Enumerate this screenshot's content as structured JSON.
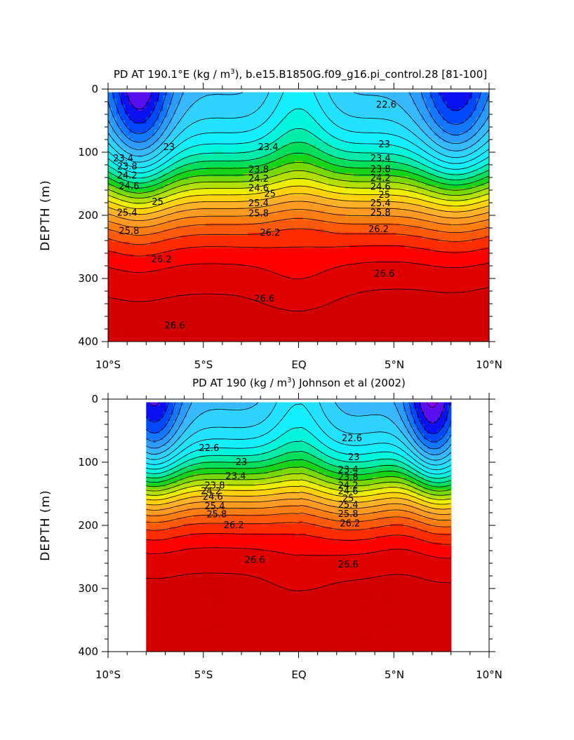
{
  "chart_data": [
    {
      "type": "heatmap",
      "subtype": "filled-contour depth section",
      "title_prefix": "PD AT 190.1°E (kg / m",
      "title_sup": "3",
      "title_suffix": "), b.e15.B1850G.f09_g16.pi_control.28 [81-100]",
      "title": "PD AT 190.1°E (kg / m³), b.e15.B1850G.f09_g16.pi_control.28 [81-100]",
      "ylabel": "DEPTH (m)",
      "xlabel": "",
      "x_range": [
        -10,
        10
      ],
      "y_range": [
        0,
        400
      ],
      "y_reversed": true,
      "x_ticks": [
        {
          "value": -10,
          "label": "10°S"
        },
        {
          "value": -5,
          "label": "5°S"
        },
        {
          "value": 0,
          "label": "EQ"
        },
        {
          "value": 5,
          "label": "5°N"
        },
        {
          "value": 10,
          "label": "10°N"
        }
      ],
      "y_ticks": [
        {
          "value": 0,
          "label": "0"
        },
        {
          "value": 100,
          "label": "100"
        },
        {
          "value": 200,
          "label": "200"
        },
        {
          "value": 300,
          "label": "300"
        },
        {
          "value": 400,
          "label": "400"
        }
      ],
      "data_extent": [
        -10,
        10
      ],
      "contour_levels": [
        21.4,
        21.6,
        21.8,
        22.0,
        22.2,
        22.4,
        22.6,
        22.8,
        23.0,
        23.2,
        23.4,
        23.6,
        23.8,
        24.0,
        24.2,
        24.4,
        24.6,
        24.8,
        25.0,
        25.2,
        25.4,
        25.6,
        25.8,
        26.0,
        26.2,
        26.4,
        26.6
      ],
      "contour_labels": [
        {
          "text": "22.6",
          "x": 4.6,
          "y": 25
        },
        {
          "text": "23",
          "x": -6.8,
          "y": 92
        },
        {
          "text": "23",
          "x": 4.5,
          "y": 88
        },
        {
          "text": "23.4",
          "x": -1.6,
          "y": 92
        },
        {
          "text": "23.4",
          "x": -9.2,
          "y": 110
        },
        {
          "text": "23.4",
          "x": 4.3,
          "y": 110
        },
        {
          "text": "23.8",
          "x": -9.0,
          "y": 123
        },
        {
          "text": "23.8",
          "x": -2.1,
          "y": 128
        },
        {
          "text": "23.8",
          "x": 4.3,
          "y": 127
        },
        {
          "text": "24.2",
          "x": -9.0,
          "y": 137
        },
        {
          "text": "24.2",
          "x": -2.1,
          "y": 142
        },
        {
          "text": "24.2",
          "x": 4.3,
          "y": 141
        },
        {
          "text": "24.6",
          "x": -8.9,
          "y": 154
        },
        {
          "text": "24.6",
          "x": -2.1,
          "y": 157
        },
        {
          "text": "24.6",
          "x": 4.3,
          "y": 155
        },
        {
          "text": "25",
          "x": -7.4,
          "y": 179
        },
        {
          "text": "25",
          "x": -1.5,
          "y": 166
        },
        {
          "text": "25",
          "x": 4.5,
          "y": 168
        },
        {
          "text": "25.4",
          "x": -9.0,
          "y": 196
        },
        {
          "text": "25.4",
          "x": -2.1,
          "y": 181
        },
        {
          "text": "25.4",
          "x": 4.3,
          "y": 181
        },
        {
          "text": "25.8",
          "x": -8.9,
          "y": 225
        },
        {
          "text": "25.8",
          "x": -2.1,
          "y": 197
        },
        {
          "text": "25.8",
          "x": 4.3,
          "y": 196
        },
        {
          "text": "26.2",
          "x": -1.5,
          "y": 228
        },
        {
          "text": "26.2",
          "x": 4.2,
          "y": 222
        },
        {
          "text": "26.2",
          "x": -7.2,
          "y": 270
        },
        {
          "text": "26.6",
          "x": 4.5,
          "y": 293
        },
        {
          "text": "26.6",
          "x": -1.8,
          "y": 332
        },
        {
          "text": "26.6",
          "x": -6.5,
          "y": 375
        }
      ]
    },
    {
      "type": "heatmap",
      "subtype": "filled-contour depth section",
      "title_prefix": "PD AT 190 (kg / m",
      "title_sup": "3",
      "title_suffix": ") Johnson et al (2002)",
      "title": "PD AT 190 (kg / m³) Johnson et al (2002)",
      "ylabel": "DEPTH (m)",
      "xlabel": "",
      "x_range": [
        -10,
        10
      ],
      "y_range": [
        0,
        400
      ],
      "y_reversed": true,
      "x_ticks": [
        {
          "value": -10,
          "label": "10°S"
        },
        {
          "value": -5,
          "label": "5°S"
        },
        {
          "value": 0,
          "label": "EQ"
        },
        {
          "value": 5,
          "label": "5°N"
        },
        {
          "value": 10,
          "label": "10°N"
        }
      ],
      "y_ticks": [
        {
          "value": 0,
          "label": "0"
        },
        {
          "value": 100,
          "label": "100"
        },
        {
          "value": 200,
          "label": "200"
        },
        {
          "value": 300,
          "label": "300"
        },
        {
          "value": 400,
          "label": "400"
        }
      ],
      "data_extent": [
        -8,
        8
      ],
      "contour_levels": [
        21.4,
        21.6,
        21.8,
        22.0,
        22.2,
        22.4,
        22.6,
        22.8,
        23.0,
        23.2,
        23.4,
        23.6,
        23.8,
        24.0,
        24.2,
        24.4,
        24.6,
        24.8,
        25.0,
        25.2,
        25.4,
        25.6,
        25.8,
        26.0,
        26.2,
        26.4,
        26.6
      ],
      "contour_labels": [
        {
          "text": "22.6",
          "x": 2.8,
          "y": 62
        },
        {
          "text": "22.6",
          "x": -4.7,
          "y": 78
        },
        {
          "text": "23",
          "x": -3.0,
          "y": 100
        },
        {
          "text": "23",
          "x": 2.9,
          "y": 92
        },
        {
          "text": "23.4",
          "x": -3.3,
          "y": 122
        },
        {
          "text": "23.4",
          "x": 2.6,
          "y": 112
        },
        {
          "text": "23.8",
          "x": -4.4,
          "y": 137
        },
        {
          "text": "23.8",
          "x": 2.6,
          "y": 124
        },
        {
          "text": "24.2",
          "x": -4.6,
          "y": 146
        },
        {
          "text": "24.2",
          "x": 2.6,
          "y": 137
        },
        {
          "text": "24.6",
          "x": -4.5,
          "y": 155
        },
        {
          "text": "24.6",
          "x": 2.6,
          "y": 146
        },
        {
          "text": "25",
          "x": 2.6,
          "y": 158
        },
        {
          "text": "25.4",
          "x": -4.4,
          "y": 170
        },
        {
          "text": "25.4",
          "x": 2.6,
          "y": 168
        },
        {
          "text": "25.8",
          "x": -4.3,
          "y": 183
        },
        {
          "text": "25.8",
          "x": 2.6,
          "y": 182
        },
        {
          "text": "26.2",
          "x": -3.4,
          "y": 200
        },
        {
          "text": "26.2",
          "x": 2.7,
          "y": 197
        },
        {
          "text": "26.6",
          "x": -2.3,
          "y": 255
        },
        {
          "text": "26.6",
          "x": 2.6,
          "y": 262
        }
      ]
    }
  ],
  "colors": {
    "band_colors": [
      "#cc00dd",
      "#8800e8",
      "#5a10ee",
      "#0a10f2",
      "#0049ff",
      "#1478ff",
      "#2c9cfa",
      "#38b8ff",
      "#2ed2fc",
      "#22e2ff",
      "#14efff",
      "#00f6dd",
      "#00eca8",
      "#00de5c",
      "#18d418",
      "#78d800",
      "#b4e000",
      "#eeee00",
      "#ffd20a",
      "#ffb228",
      "#ff9a22",
      "#ff7e12",
      "#ff5a0c",
      "#ff2c00",
      "#ff0000",
      "#e00000",
      "#d20000",
      "#c40000"
    ],
    "contour_line": "#000000",
    "axes": "#000000"
  }
}
